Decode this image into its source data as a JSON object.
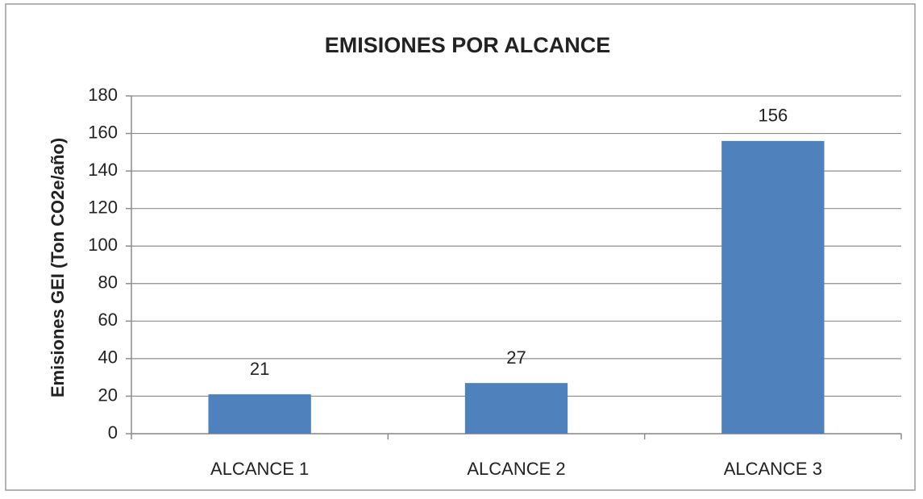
{
  "chart_data": {
    "type": "bar",
    "title": "EMISIONES POR ALCANCE",
    "y_label": "Emisiones GEI (Ton CO2e/año)",
    "categories": [
      "ALCANCE 1",
      "ALCANCE 2",
      "ALCANCE 3"
    ],
    "values": [
      21,
      27,
      156
    ],
    "color": "#4f81bd",
    "ylim": [
      0,
      180
    ],
    "yticks": [
      0,
      20,
      40,
      60,
      80,
      100,
      120,
      140,
      160,
      180
    ],
    "grid": true,
    "data_labels": true
  }
}
